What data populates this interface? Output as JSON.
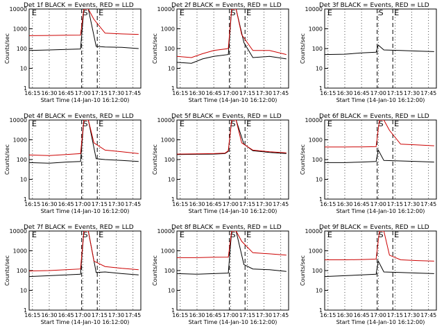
{
  "legend_text": "BLACK = Events, RED = LLD",
  "xlabel": "Start Time (14-Jan-10 16:12:00)",
  "ylabel": "Counts/sec",
  "xticks": [
    "16:15",
    "16:30",
    "16:45",
    "17:00",
    "17:15",
    "17:30",
    "17:45"
  ],
  "yticks": [
    "1",
    "10",
    "100",
    "1000",
    "10000"
  ],
  "marker_labels": [
    "E",
    "S",
    "E"
  ],
  "colors": {
    "events": "#000000",
    "lld": "#cc0000"
  },
  "chart_data": [
    {
      "type": "line",
      "title": "Det 1f BLACK = Events, RED = LLD",
      "ylim": [
        1,
        10000
      ],
      "yscale": "log",
      "markers_minutes": {
        "E1": 0,
        "S": 47,
        "E2": 61
      },
      "series": [
        {
          "name": "Events",
          "x": [
            "16:12",
            "16:30",
            "16:45",
            "16:58",
            "17:01",
            "17:05",
            "17:12",
            "17:20",
            "17:35",
            "17:50"
          ],
          "y": [
            80,
            85,
            90,
            95,
            10000,
            10000,
            130,
            120,
            115,
            100
          ]
        },
        {
          "name": "LLD",
          "x": [
            "16:12",
            "16:30",
            "16:45",
            "16:58",
            "17:01",
            "17:05",
            "17:10",
            "17:20",
            "17:35",
            "17:50"
          ],
          "y": [
            450,
            460,
            470,
            480,
            10000,
            10000,
            3000,
            600,
            550,
            520
          ]
        }
      ]
    },
    {
      "type": "line",
      "title": "Det 2f BLACK = Events, RED = LLD",
      "ylim": [
        1,
        10000
      ],
      "yscale": "log",
      "markers_minutes": {
        "E1": 0,
        "S": 47,
        "E2": 61
      },
      "series": [
        {
          "name": "Events",
          "x": [
            "16:12",
            "16:25",
            "16:35",
            "16:45",
            "16:58",
            "17:01",
            "17:05",
            "17:12",
            "17:20",
            "17:35",
            "17:50"
          ],
          "y": [
            20,
            18,
            30,
            40,
            50,
            10000,
            10000,
            200,
            35,
            40,
            30
          ]
        },
        {
          "name": "LLD",
          "x": [
            "16:12",
            "16:25",
            "16:35",
            "16:45",
            "16:58",
            "17:01",
            "17:05",
            "17:10",
            "17:20",
            "17:35",
            "17:50"
          ],
          "y": [
            40,
            35,
            55,
            80,
            100,
            10000,
            10000,
            500,
            80,
            80,
            50
          ]
        }
      ]
    },
    {
      "type": "line",
      "title": "Det 3f BLACK = Events, RED = LLD",
      "ylim": [
        1,
        10000
      ],
      "yscale": "log",
      "markers_minutes": {
        "E1": 0,
        "S": 47,
        "E2": 61
      },
      "series": [
        {
          "name": "Events",
          "x": [
            "16:12",
            "16:30",
            "16:45",
            "16:58",
            "17:00",
            "17:05",
            "17:20",
            "17:35",
            "17:50"
          ],
          "y": [
            50,
            52,
            60,
            65,
            150,
            85,
            80,
            75,
            70
          ]
        }
      ]
    },
    {
      "type": "line",
      "title": "Det 4f BLACK = Events, RED = LLD",
      "ylim": [
        1,
        10000
      ],
      "yscale": "log",
      "markers_minutes": {
        "E1": 0,
        "S": 47,
        "E2": 61
      },
      "series": [
        {
          "name": "Events",
          "x": [
            "16:12",
            "16:30",
            "16:45",
            "16:58",
            "17:01",
            "17:05",
            "17:12",
            "17:20",
            "17:35",
            "17:50"
          ],
          "y": [
            70,
            65,
            75,
            80,
            10000,
            10000,
            110,
            100,
            90,
            80
          ]
        },
        {
          "name": "LLD",
          "x": [
            "16:12",
            "16:30",
            "16:45",
            "16:58",
            "17:01",
            "17:05",
            "17:10",
            "17:20",
            "17:35",
            "17:50"
          ],
          "y": [
            170,
            160,
            180,
            200,
            10000,
            10000,
            700,
            300,
            250,
            200
          ]
        }
      ]
    },
    {
      "type": "line",
      "title": "Det 5f BLACK = Events, RED = LLD",
      "ylim": [
        1,
        10000
      ],
      "yscale": "log",
      "markers_minutes": {
        "E1": 0,
        "S": 47,
        "E2": 61
      },
      "series": [
        {
          "name": "Events",
          "x": [
            "16:12",
            "16:30",
            "16:45",
            "16:55",
            "16:58",
            "17:01",
            "17:05",
            "17:12",
            "17:20",
            "17:35",
            "17:50"
          ],
          "y": [
            180,
            185,
            190,
            200,
            260,
            10000,
            10000,
            600,
            280,
            230,
            200
          ]
        },
        {
          "name": "LLD",
          "x": [
            "16:12",
            "16:30",
            "16:45",
            "16:55",
            "16:58",
            "17:01",
            "17:05",
            "17:10",
            "17:20",
            "17:35",
            "17:50"
          ],
          "y": [
            190,
            195,
            200,
            210,
            280,
            10000,
            10000,
            700,
            300,
            250,
            220
          ]
        }
      ]
    },
    {
      "type": "line",
      "title": "Det 6f BLACK = Events, RED = LLD",
      "ylim": [
        1,
        10000
      ],
      "yscale": "log",
      "markers_minutes": {
        "E1": 0,
        "S": 47,
        "E2": 61
      },
      "series": [
        {
          "name": "Events",
          "x": [
            "16:12",
            "16:30",
            "16:45",
            "16:58",
            "17:00",
            "17:05",
            "17:20",
            "17:35",
            "17:50"
          ],
          "y": [
            70,
            70,
            75,
            80,
            300,
            90,
            85,
            80,
            75
          ]
        },
        {
          "name": "LLD",
          "x": [
            "16:12",
            "16:30",
            "16:45",
            "16:58",
            "17:01",
            "17:05",
            "17:10",
            "17:20",
            "17:35",
            "17:50"
          ],
          "y": [
            430,
            430,
            440,
            450,
            10000,
            10000,
            3000,
            600,
            550,
            500
          ]
        }
      ]
    },
    {
      "type": "line",
      "title": "Det 7f BLACK = Events, RED = LLD",
      "ylim": [
        1,
        10000
      ],
      "yscale": "log",
      "markers_minutes": {
        "E1": 0,
        "S": 47,
        "E2": 61
      },
      "series": [
        {
          "name": "Events",
          "x": [
            "16:12",
            "16:30",
            "16:45",
            "16:58",
            "17:01",
            "17:05",
            "17:12",
            "17:20",
            "17:35",
            "17:50"
          ],
          "y": [
            50,
            55,
            60,
            65,
            10000,
            10000,
            80,
            85,
            70,
            60
          ]
        },
        {
          "name": "LLD",
          "x": [
            "16:12",
            "16:30",
            "16:45",
            "16:58",
            "17:01",
            "17:05",
            "17:10",
            "17:20",
            "17:35",
            "17:50"
          ],
          "y": [
            95,
            100,
            110,
            120,
            10000,
            10000,
            300,
            160,
            130,
            110
          ]
        }
      ]
    },
    {
      "type": "line",
      "title": "Det 8f BLACK = Events, RED = LLD",
      "ylim": [
        1,
        10000
      ],
      "yscale": "log",
      "markers_minutes": {
        "E1": 0,
        "S": 47,
        "E2": 61
      },
      "series": [
        {
          "name": "Events",
          "x": [
            "16:12",
            "16:30",
            "16:45",
            "16:58",
            "17:01",
            "17:05",
            "17:12",
            "17:20",
            "17:35",
            "17:50"
          ],
          "y": [
            70,
            65,
            70,
            75,
            10000,
            10000,
            200,
            120,
            110,
            90
          ]
        },
        {
          "name": "LLD",
          "x": [
            "16:12",
            "16:30",
            "16:45",
            "16:58",
            "17:01",
            "17:05",
            "17:10",
            "17:20",
            "17:35",
            "17:50"
          ],
          "y": [
            450,
            450,
            470,
            480,
            10000,
            10000,
            3000,
            800,
            700,
            600
          ]
        }
      ]
    },
    {
      "type": "line",
      "title": "Det 9f BLACK = Events, RED = LLD",
      "ylim": [
        1,
        10000
      ],
      "yscale": "log",
      "markers_minutes": {
        "E1": 0,
        "S": 47,
        "E2": 61
      },
      "series": [
        {
          "name": "Events",
          "x": [
            "16:12",
            "16:30",
            "16:45",
            "16:58",
            "17:00",
            "17:05",
            "17:20",
            "17:35",
            "17:50"
          ],
          "y": [
            50,
            55,
            60,
            65,
            300,
            85,
            80,
            75,
            70
          ]
        },
        {
          "name": "LLD",
          "x": [
            "16:12",
            "16:30",
            "16:45",
            "16:58",
            "17:01",
            "17:05",
            "17:10",
            "17:20",
            "17:35",
            "17:50"
          ],
          "y": [
            350,
            350,
            360,
            380,
            10000,
            10000,
            600,
            350,
            320,
            300
          ]
        }
      ]
    }
  ]
}
